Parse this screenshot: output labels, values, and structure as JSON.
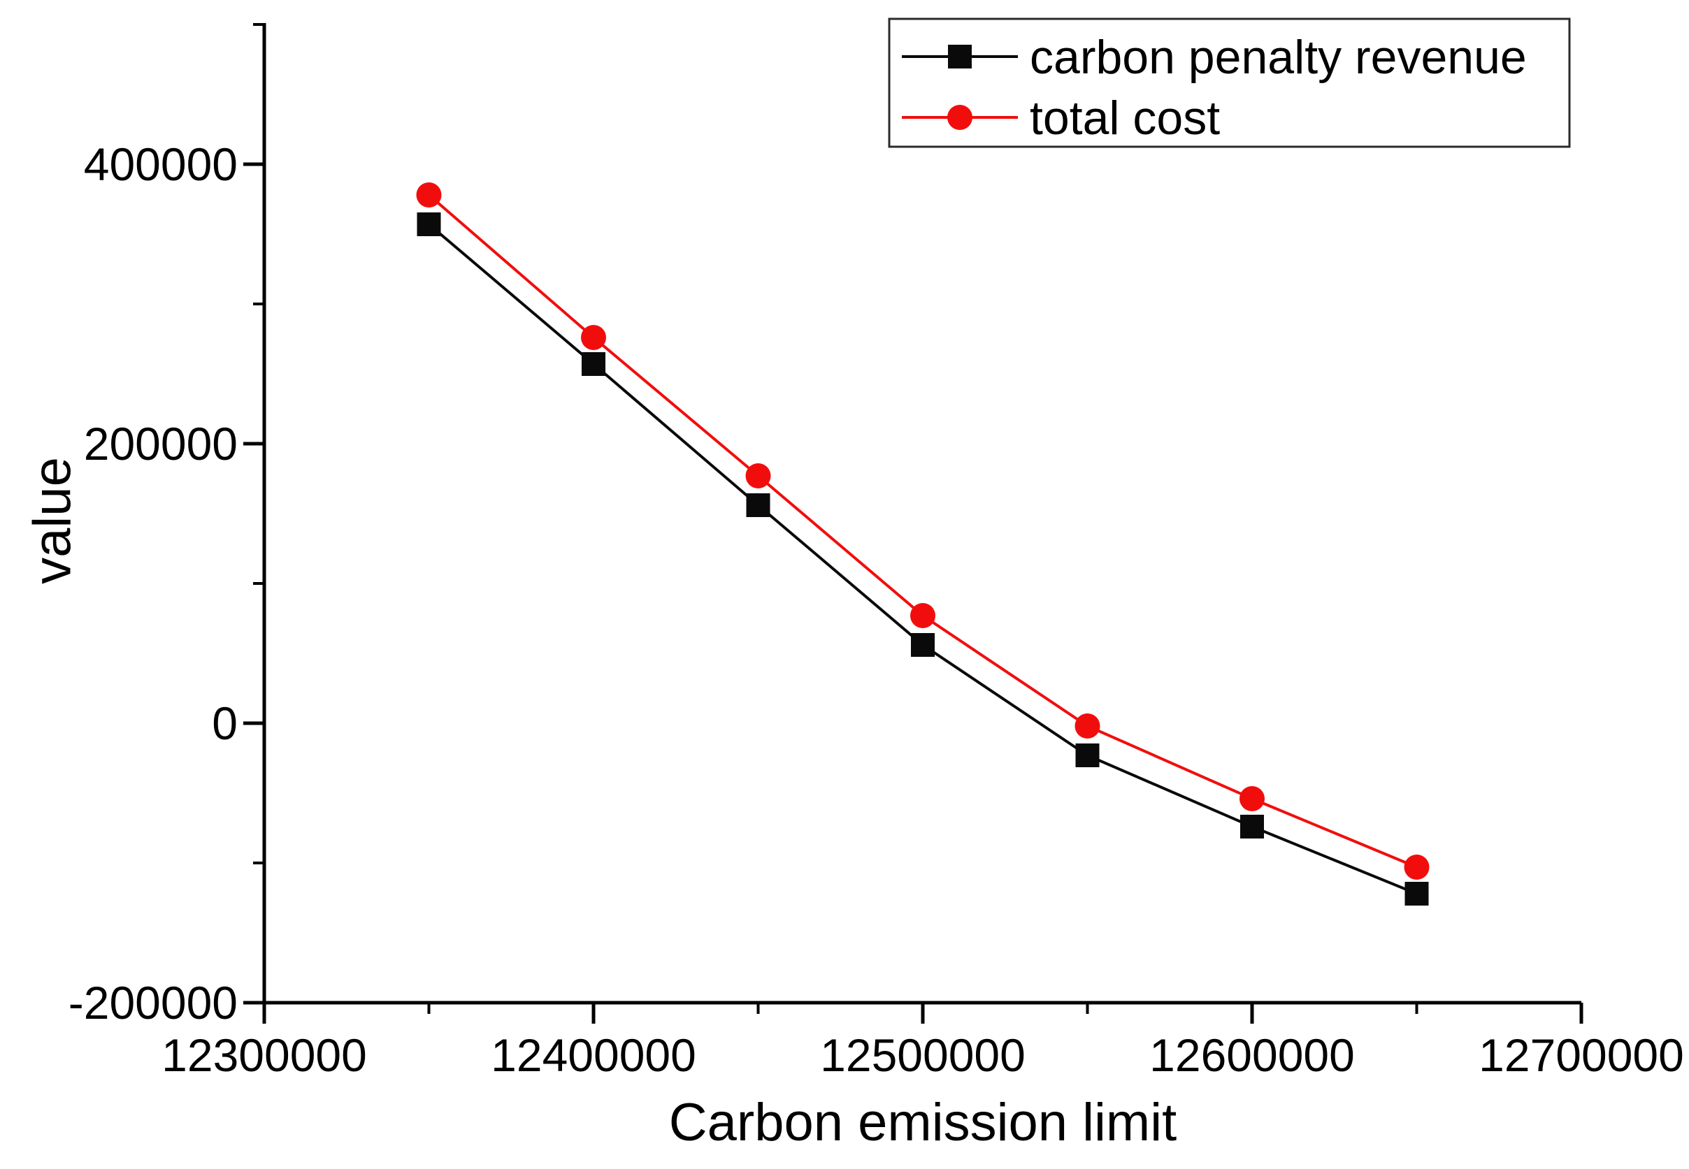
{
  "chart_data": {
    "type": "line",
    "title": "",
    "xlabel": "Carbon emission limit",
    "ylabel": "value",
    "x": [
      12350000,
      12400000,
      12450000,
      12500000,
      12550000,
      12600000,
      12650000
    ],
    "series": [
      {
        "name": "carbon penalty revenue",
        "color": "#0a0a0a",
        "marker": "square",
        "values": [
          357000,
          257000,
          156000,
          56000,
          -23000,
          -74000,
          -122000
        ]
      },
      {
        "name": "total cost",
        "color": "#f20d0d",
        "marker": "circle",
        "values": [
          378000,
          276000,
          177000,
          77000,
          -2000,
          -54000,
          -103000
        ]
      }
    ],
    "xlim": [
      12300000,
      12700000
    ],
    "ylim": [
      -200000,
      500000
    ],
    "x_major_ticks": [
      12300000,
      12400000,
      12500000,
      12600000,
      12700000
    ],
    "x_minor_step": 50000,
    "y_major_ticks": [
      -200000,
      0,
      200000,
      400000
    ],
    "y_minor_step": 100000,
    "grid": false,
    "legend_position": "top-right"
  }
}
